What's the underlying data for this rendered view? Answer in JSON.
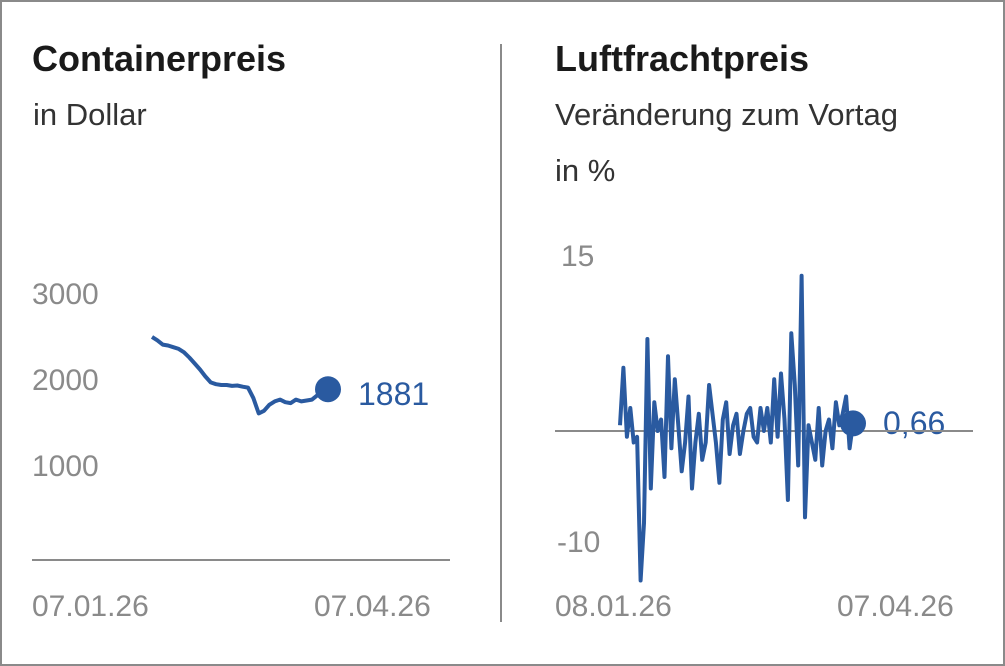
{
  "colors": {
    "series": "#2a5aa0",
    "axis": "#8a8a8a",
    "text": "#1a1a1a"
  },
  "chart_data": [
    {
      "type": "line",
      "title": "Containerpreis",
      "subtitle": "in Dollar",
      "y_ticks": [
        "3000",
        "2000",
        "1000"
      ],
      "x_ticks": [
        "07.01.26",
        "07.04.26"
      ],
      "x_start": "07.01.26",
      "x_end": "07.04.26",
      "ylim": [
        0,
        3000
      ],
      "end_value_label": "1881",
      "series": [
        {
          "values": [
            2490,
            2450,
            2400,
            2390,
            2370,
            2350,
            2310,
            2250,
            2180,
            2110,
            2030,
            1960,
            1940,
            1930,
            1930,
            1920,
            1925,
            1910,
            1900,
            1780,
            1600,
            1630,
            1700,
            1740,
            1760,
            1730,
            1720,
            1760,
            1740,
            1750,
            1760,
            1810,
            1850,
            1881
          ]
        }
      ]
    },
    {
      "type": "line",
      "title": "Luftfrachtpreis",
      "subtitle": "Veränderung zum Vortag",
      "subtitle2": "in %",
      "y_ticks": [
        "15",
        "-10"
      ],
      "x_ticks": [
        "08.01.26",
        "07.04.26"
      ],
      "x_start": "08.01.26",
      "x_end": "07.04.26",
      "ylim": [
        -10,
        15
      ],
      "end_value_label": "0,66",
      "series": [
        {
          "values": [
            0.5,
            5.5,
            -0.5,
            2.0,
            -1.0,
            -0.5,
            -13.0,
            -8.0,
            8.0,
            -5.0,
            2.5,
            0.0,
            1.0,
            -4.0,
            6.5,
            -1.5,
            4.5,
            0.5,
            -3.5,
            -1.0,
            3.0,
            -5.0,
            -1.0,
            1.5,
            -2.5,
            -1.0,
            4.0,
            1.5,
            -1.0,
            -4.5,
            1.0,
            2.5,
            -2.0,
            0.5,
            1.5,
            -2.0,
            0.0,
            1.5,
            2.0,
            -0.5,
            -1.0,
            2.0,
            0.0,
            2.0,
            -1.0,
            4.5,
            -0.5,
            5.0,
            1.0,
            -6.0,
            8.5,
            4.0,
            -3.0,
            13.5,
            -7.5,
            0.5,
            -1.0,
            -2.5,
            2.0,
            -3.0,
            0.0,
            1.0,
            -1.5,
            2.5,
            0.5,
            1.5,
            3.0,
            -1.5,
            0.66
          ]
        }
      ]
    }
  ]
}
